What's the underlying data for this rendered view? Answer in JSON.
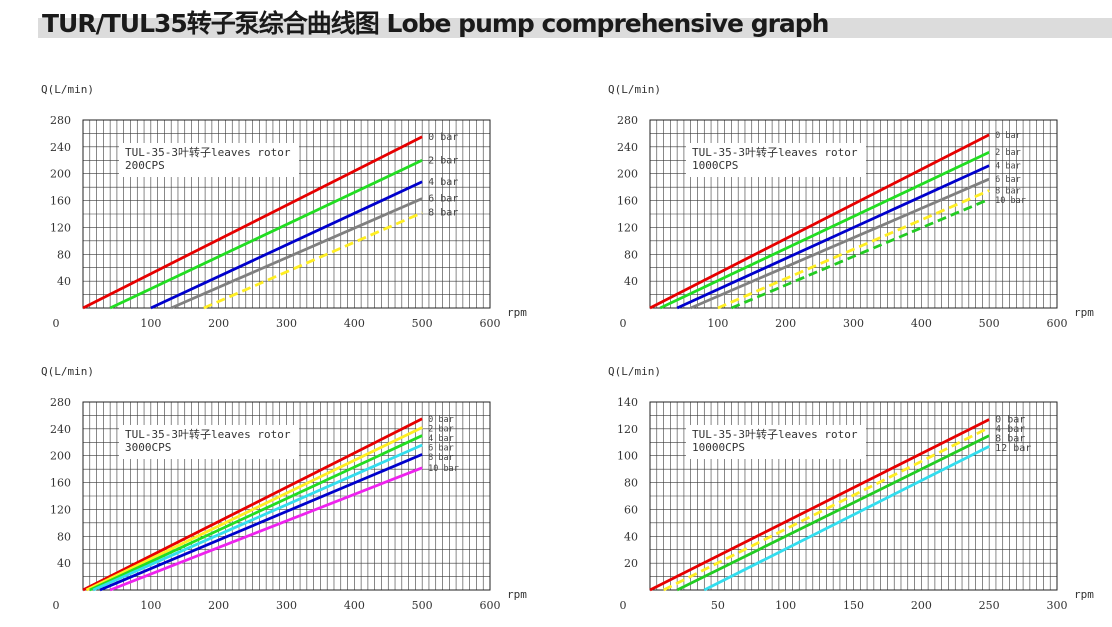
{
  "page": {
    "title": "TUR/TUL35转子泵综合曲线图 Lobe pump comprehensive graph"
  },
  "chart_data": [
    {
      "type": "line",
      "ylabel": "Q(L/min)",
      "xlabel": "rpm",
      "annotation_line1": "TUL-35-3叶转子leaves rotor",
      "annotation_line2": "200CPS",
      "xlim": [
        0,
        600
      ],
      "ylim": [
        0,
        280
      ],
      "x_ticks": [
        100,
        200,
        300,
        400,
        500,
        600
      ],
      "y_ticks": [
        40,
        80,
        120,
        160,
        200,
        240,
        280
      ],
      "grid": true,
      "legend_placement": "right",
      "series": [
        {
          "name": "0 bar",
          "color": "#e60000",
          "dashed": false,
          "x": [
            0,
            500
          ],
          "y": [
            0,
            255
          ]
        },
        {
          "name": "2 bar",
          "color": "#22dd22",
          "dashed": false,
          "x": [
            40,
            500
          ],
          "y": [
            0,
            220
          ]
        },
        {
          "name": "4 bar",
          "color": "#0000cc",
          "dashed": false,
          "x": [
            100,
            500
          ],
          "y": [
            0,
            188
          ]
        },
        {
          "name": "6 bar",
          "color": "#808080",
          "dashed": false,
          "x": [
            130,
            500
          ],
          "y": [
            0,
            163
          ]
        },
        {
          "name": "8 bar",
          "color": "#ffee22",
          "dashed": true,
          "x": [
            178,
            500
          ],
          "y": [
            0,
            142
          ]
        }
      ]
    },
    {
      "type": "line",
      "ylabel": "Q(L/min)",
      "xlabel": "rpm",
      "annotation_line1": "TUL-35-3叶转子leaves rotor",
      "annotation_line2": "1000CPS",
      "xlim": [
        0,
        600
      ],
      "ylim": [
        0,
        280
      ],
      "x_ticks": [
        100,
        200,
        300,
        400,
        500,
        600
      ],
      "y_ticks": [
        40,
        80,
        120,
        160,
        200,
        240,
        280
      ],
      "grid": true,
      "legend_placement": "right",
      "series": [
        {
          "name": "0 bar",
          "color": "#e60000",
          "dashed": false,
          "x": [
            0,
            500
          ],
          "y": [
            0,
            258
          ]
        },
        {
          "name": "2 bar",
          "color": "#22dd22",
          "dashed": false,
          "x": [
            15,
            500
          ],
          "y": [
            0,
            232
          ]
        },
        {
          "name": "4 bar",
          "color": "#0000cc",
          "dashed": false,
          "x": [
            40,
            500
          ],
          "y": [
            0,
            212
          ]
        },
        {
          "name": "6 bar",
          "color": "#808080",
          "dashed": false,
          "x": [
            60,
            500
          ],
          "y": [
            0,
            192
          ]
        },
        {
          "name": "8 bar",
          "color": "#ffee22",
          "dashed": true,
          "x": [
            100,
            500
          ],
          "y": [
            0,
            175
          ]
        },
        {
          "name": "10 bar",
          "color": "#22cc22",
          "dashed": true,
          "x": [
            120,
            500
          ],
          "y": [
            0,
            162
          ]
        }
      ]
    },
    {
      "type": "line",
      "ylabel": "Q(L/min)",
      "xlabel": "rpm",
      "annotation_line1": "TUL-35-3叶转子leaves rotor",
      "annotation_line2": "3000CPS",
      "xlim": [
        0,
        600
      ],
      "ylim": [
        0,
        280
      ],
      "x_ticks": [
        100,
        200,
        300,
        400,
        500,
        600
      ],
      "y_ticks": [
        40,
        80,
        120,
        160,
        200,
        240,
        280
      ],
      "grid": true,
      "legend_placement": "right",
      "series": [
        {
          "name": "0 bar",
          "color": "#e60000",
          "dashed": false,
          "x": [
            0,
            500
          ],
          "y": [
            0,
            255
          ]
        },
        {
          "name": "2 bar",
          "color": "#ffee22",
          "dashed": false,
          "x": [
            5,
            500
          ],
          "y": [
            0,
            242
          ]
        },
        {
          "name": "4 bar",
          "color": "#22dd22",
          "dashed": false,
          "x": [
            10,
            500
          ],
          "y": [
            0,
            230
          ]
        },
        {
          "name": "6 bar",
          "color": "#33ddee",
          "dashed": false,
          "x": [
            15,
            500
          ],
          "y": [
            0,
            216
          ]
        },
        {
          "name": "8 bar",
          "color": "#0000cc",
          "dashed": false,
          "x": [
            25,
            500
          ],
          "y": [
            0,
            202
          ]
        },
        {
          "name": "10 bar",
          "color": "#ee22ee",
          "dashed": false,
          "x": [
            40,
            500
          ],
          "y": [
            0,
            182
          ]
        }
      ]
    },
    {
      "type": "line",
      "ylabel": "Q(L/min)",
      "xlabel": "rpm",
      "annotation_line1": "TUL-35-3叶转子leaves rotor",
      "annotation_line2": "10000CPS",
      "xlim": [
        0,
        300
      ],
      "ylim": [
        0,
        140
      ],
      "x_ticks": [
        50,
        100,
        150,
        200,
        250,
        300
      ],
      "y_ticks": [
        20,
        40,
        60,
        80,
        100,
        120,
        140
      ],
      "grid": true,
      "legend_placement": "right",
      "series": [
        {
          "name": "0 bar",
          "color": "#e60000",
          "dashed": false,
          "x": [
            0,
            250
          ],
          "y": [
            0,
            127
          ]
        },
        {
          "name": "4 bar",
          "color": "#ffee22",
          "dashed": true,
          "x": [
            10,
            250
          ],
          "y": [
            0,
            121
          ]
        },
        {
          "name": "8 bar",
          "color": "#22cc22",
          "dashed": false,
          "x": [
            20,
            250
          ],
          "y": [
            0,
            115
          ]
        },
        {
          "name": "12 bar",
          "color": "#33ddee",
          "dashed": false,
          "x": [
            40,
            250
          ],
          "y": [
            0,
            107
          ]
        }
      ]
    }
  ]
}
